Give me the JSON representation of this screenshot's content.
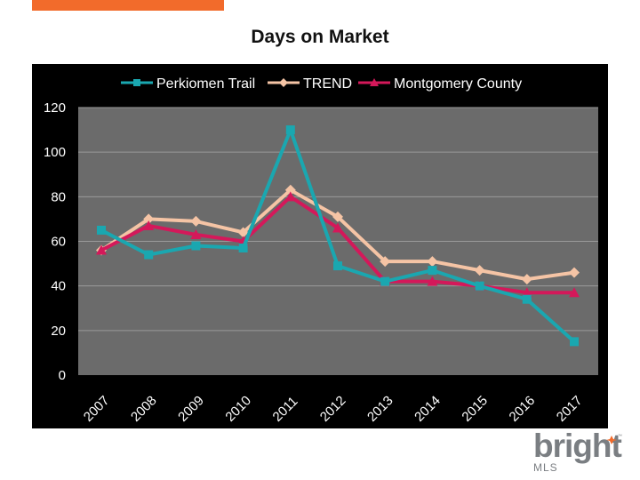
{
  "header": {
    "title": "Days on Market"
  },
  "chart_data": {
    "type": "line",
    "title": "Days on Market",
    "categories": [
      "2007",
      "2008",
      "2009",
      "2010",
      "2011",
      "2012",
      "2013",
      "2014",
      "2015",
      "2016",
      "2017"
    ],
    "ylim": [
      0,
      120
    ],
    "yticks": [
      0,
      20,
      40,
      60,
      80,
      100,
      120
    ],
    "grid": true,
    "legend_position": "top",
    "series": [
      {
        "name": "Perkiomen Trail",
        "color": "#1aa7b0",
        "marker": "square",
        "values": [
          65,
          54,
          58,
          57,
          110,
          49,
          42,
          47,
          40,
          34,
          15
        ]
      },
      {
        "name": "TREND",
        "color": "#f5c4a5",
        "marker": "diamond",
        "values": [
          56,
          70,
          69,
          64,
          83,
          71,
          51,
          51,
          47,
          43,
          46
        ]
      },
      {
        "name": "Montgomery County",
        "color": "#d4185a",
        "marker": "triangle",
        "values": [
          56,
          67,
          63,
          60,
          80,
          66,
          42,
          42,
          40,
          37,
          37
        ]
      }
    ]
  },
  "logo": {
    "word": "bright",
    "sub": "MLS",
    "tm": "™",
    "accent_color": "#f26b2b"
  }
}
